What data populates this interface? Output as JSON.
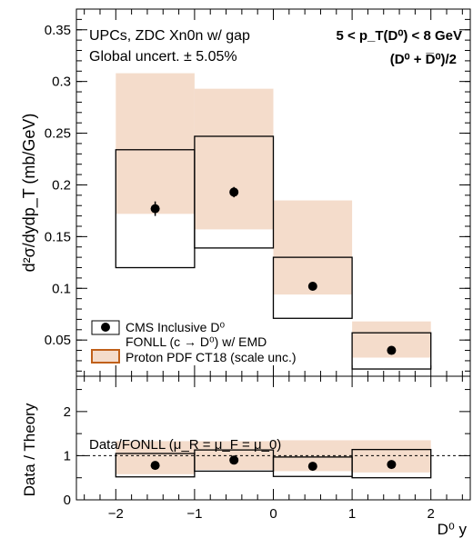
{
  "chart_data": [
    {
      "type": "scatter",
      "xlabel": "D⁰ y",
      "ylabel": "d²σ/dydp_T (mb/GeV)",
      "xlim": [
        -2.5,
        2.5
      ],
      "ylim": [
        0.015,
        0.37
      ],
      "yticks": [
        "0.05",
        "0.1",
        "0.15",
        "0.2",
        "0.25",
        "0.3",
        "0.35"
      ],
      "annotations": {
        "line1": "UPCs, ZDC Xn0n w/ gap",
        "line2": "Global uncert. ± 5.05%",
        "kin1": "5 < p_T(D⁰) < 8 GeV",
        "kin2": "(D⁰ + D̅⁰)/2"
      },
      "legend": {
        "placement": "bottom-left",
        "entries": [
          {
            "line1": "CMS Inclusive D⁰"
          },
          {
            "line1": "FONLL (c → D⁰) w/ EMD"
          },
          {
            "line1": "Proton PDF CT18 (scale unc.)"
          }
        ]
      },
      "bins": [
        {
          "x_low": -2,
          "x_high": -1,
          "data": 0.177,
          "data_err": 0.007,
          "fonll_low": 0.12,
          "fonll_high": 0.234,
          "pdf_low": 0.172,
          "pdf_high": 0.308
        },
        {
          "x_low": -1,
          "x_high": 0,
          "data": 0.193,
          "data_err": 0.005,
          "fonll_low": 0.139,
          "fonll_high": 0.247,
          "pdf_low": 0.157,
          "pdf_high": 0.293
        },
        {
          "x_low": 0,
          "x_high": 1,
          "data": 0.102,
          "data_err": 0.002,
          "fonll_low": 0.071,
          "fonll_high": 0.13,
          "pdf_low": 0.094,
          "pdf_high": 0.185
        },
        {
          "x_low": 1,
          "x_high": 2,
          "data": 0.04,
          "data_err": 0.001,
          "fonll_low": 0.022,
          "fonll_high": 0.057,
          "pdf_low": 0.033,
          "pdf_high": 0.068
        }
      ],
      "colors": {
        "pdf_fill": "#f4dccb",
        "pdf_edge": "#c0601a",
        "marker": "#000000"
      }
    },
    {
      "type": "scatter",
      "xlabel": "D⁰ y",
      "ylabel": "Data / Theory",
      "xlim": [
        -2.5,
        2.5
      ],
      "ylim": [
        0,
        2.8
      ],
      "yticks": [
        "0",
        "1",
        "2"
      ],
      "xticks": [
        "−2",
        "−1",
        "0",
        "1",
        "2"
      ],
      "label": "Data/FONLL (μ_R = μ_F = μ_0)",
      "reference_line": 1,
      "bins": [
        {
          "x_low": -2,
          "x_high": -1,
          "ratio": 0.78,
          "fonll_low": 0.52,
          "fonll_high": 1.05,
          "pdf_low": 0.58,
          "pdf_high": 1.33
        },
        {
          "x_low": -1,
          "x_high": 0,
          "ratio": 0.9,
          "fonll_low": 0.65,
          "fonll_high": 1.13,
          "pdf_low": 0.68,
          "pdf_high": 1.33
        },
        {
          "x_low": 0,
          "x_high": 1,
          "ratio": 0.76,
          "fonll_low": 0.53,
          "fonll_high": 0.97,
          "pdf_low": 0.65,
          "pdf_high": 1.35
        },
        {
          "x_low": 1,
          "x_high": 2,
          "ratio": 0.8,
          "fonll_low": 0.5,
          "fonll_high": 1.14,
          "pdf_low": 0.62,
          "pdf_high": 1.35
        }
      ]
    }
  ]
}
